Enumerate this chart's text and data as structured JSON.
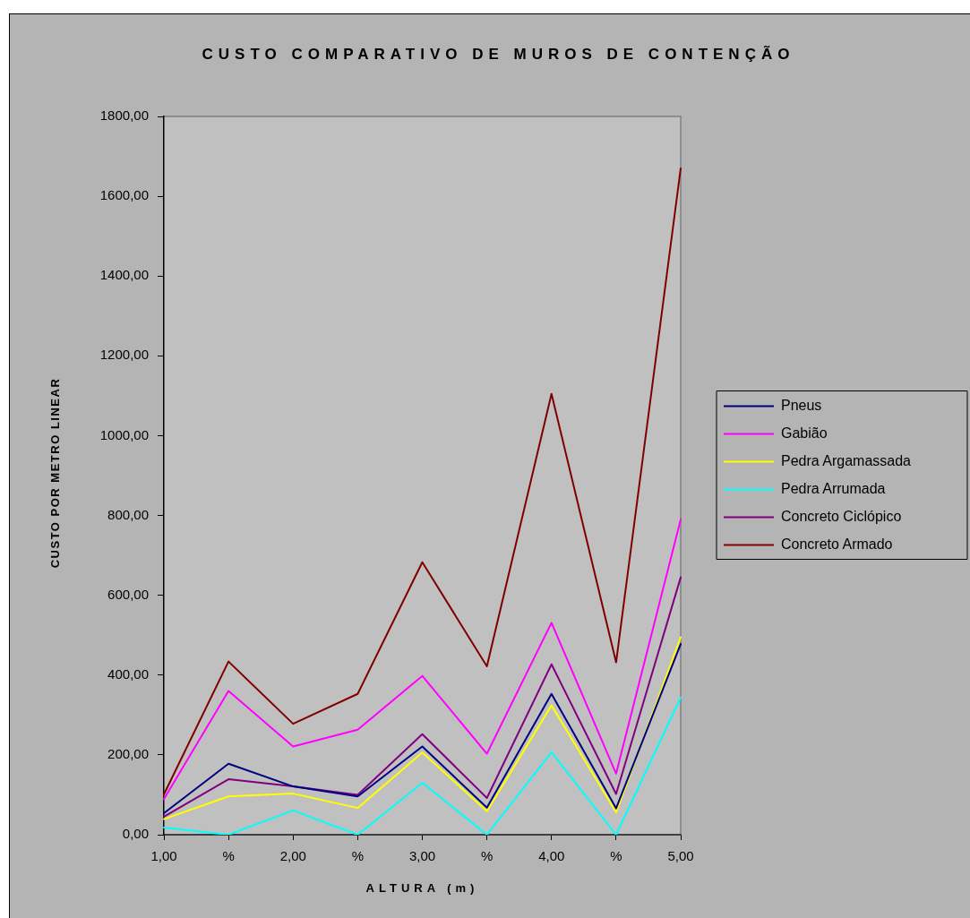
{
  "chart_data": {
    "type": "line",
    "title": "CUSTO COMPARATIVO DE MUROS DE CONTENÇÃO",
    "xlabel": "ALTURA (m)",
    "ylabel": "CUSTO POR METRO LINEAR",
    "categories": [
      "1,00",
      "%",
      "2,00",
      "%",
      "3,00",
      "%",
      "4,00",
      "%",
      "5,00"
    ],
    "ylim": [
      0,
      1800
    ],
    "yticks": [
      {
        "value": 0,
        "label": "0,00"
      },
      {
        "value": 200,
        "label": "200,00"
      },
      {
        "value": 400,
        "label": "400,00"
      },
      {
        "value": 600,
        "label": "600,00"
      },
      {
        "value": 800,
        "label": "800,00"
      },
      {
        "value": 1000,
        "label": "1000,00"
      },
      {
        "value": 1200,
        "label": "1200,00"
      },
      {
        "value": 1400,
        "label": "1400,00"
      },
      {
        "value": 1600,
        "label": "1600,00"
      },
      {
        "value": 1800,
        "label": "1800,00"
      }
    ],
    "grid": false,
    "legend": "right",
    "series": [
      {
        "name": "Pneus",
        "color": "#000080",
        "values": [
          54,
          178,
          121,
          96,
          221,
          68,
          353,
          66,
          478
        ]
      },
      {
        "name": "Gabião",
        "color": "#ff00ff",
        "values": [
          89,
          360,
          221,
          263,
          398,
          203,
          531,
          153,
          790
        ]
      },
      {
        "name": "Pedra Argamassada",
        "color": "#ffff00",
        "values": [
          39,
          96,
          103,
          67,
          206,
          59,
          324,
          56,
          495
        ]
      },
      {
        "name": "Pedra Arrumada",
        "color": "#00ffff",
        "values": [
          18,
          0,
          61,
          0,
          130,
          0,
          207,
          0,
          344
        ]
      },
      {
        "name": "Concreto Ciclópico",
        "color": "#800080",
        "values": [
          45,
          139,
          121,
          100,
          252,
          92,
          427,
          102,
          645
        ]
      },
      {
        "name": "Concreto Armado",
        "color": "#800000",
        "values": [
          101,
          434,
          278,
          353,
          683,
          422,
          1105,
          432,
          1670
        ]
      }
    ]
  }
}
